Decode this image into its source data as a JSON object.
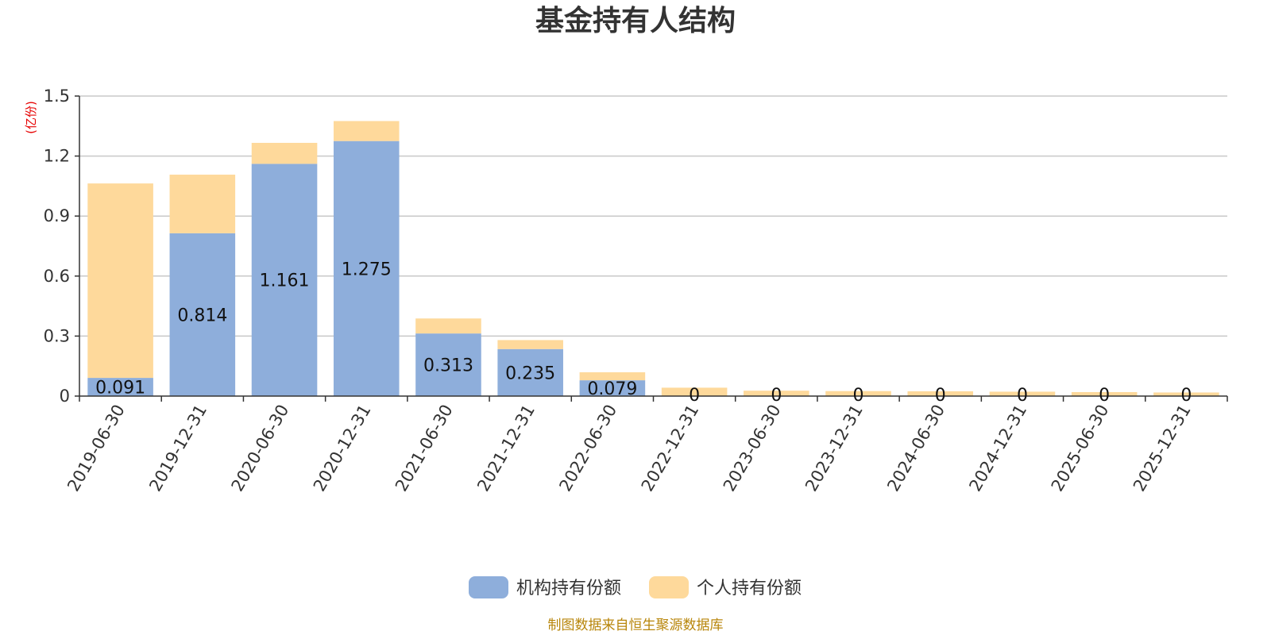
{
  "chart_data": {
    "type": "bar",
    "stacked": true,
    "title": "基金持有人结构",
    "unit": "(亿份)",
    "categories": [
      "2019-06-30",
      "2019-12-31",
      "2020-06-30",
      "2020-12-31",
      "2021-06-30",
      "2021-12-31",
      "2022-06-30",
      "2022-12-31",
      "2023-06-30",
      "2023-12-31",
      "2024-06-30",
      "2024-12-31",
      "2025-06-30",
      "2025-12-31"
    ],
    "series": [
      {
        "name": "机构持有份额",
        "color": "#8eaedb",
        "values": [
          0.091,
          0.814,
          1.161,
          1.275,
          0.313,
          0.235,
          0.079,
          0,
          0,
          0,
          0,
          0,
          0,
          0
        ],
        "labels": [
          "0.091",
          "0.814",
          "1.161",
          "1.275",
          "0.313",
          "0.235",
          "0.079",
          "0",
          "0",
          "0",
          "0",
          "0",
          "0",
          "0"
        ]
      },
      {
        "name": "个人持有份额",
        "color": "#fed99b",
        "values": [
          0.972,
          0.293,
          0.105,
          0.1,
          0.075,
          0.045,
          0.04,
          0.042,
          0.027,
          0.025,
          0.024,
          0.022,
          0.02,
          0.018
        ]
      }
    ],
    "y_ticks": [
      "0",
      "0.3",
      "0.6",
      "0.9",
      "1.2",
      "1.5"
    ],
    "ylim": [
      0,
      1.5
    ],
    "grid": true,
    "legend_position": "bottom-center"
  },
  "footer": {
    "source": "制图数据来自恒生聚源数据库"
  }
}
